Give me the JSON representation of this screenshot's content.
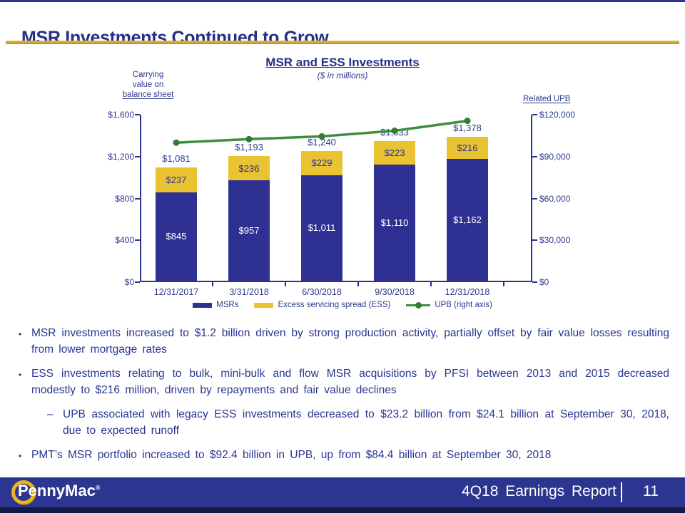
{
  "slide": {
    "title": "MSR Investments Continued to Grow"
  },
  "colors": {
    "navy_bar": "#2E3192",
    "gold_bar": "#E9C331",
    "green_line": "#3E8E41",
    "green_marker": "#2F7D33",
    "gold_rule": "#C2A02C",
    "text_navy": "#283593",
    "footer_bg": "#2C3691"
  },
  "chart": {
    "title": "MSR and ESS Investments",
    "subtitle": "($ in millions)",
    "left_axis_label": {
      "line1": "Carrying",
      "line2": "value on",
      "line3": "balance sheet"
    },
    "right_axis_label": "Related UPB",
    "left_ticks": [
      "$1,600",
      "$1,200",
      "$800",
      "$400",
      "$0"
    ],
    "right_ticks": [
      "$120,000",
      "$90,000",
      "$60,000",
      "$30,000",
      "$0"
    ],
    "legend": [
      {
        "label": "MSRs",
        "swatch": "rect",
        "color": "#2E3192"
      },
      {
        "label": "Excess servicing spread (ESS)",
        "swatch": "rect",
        "color": "#E9C331"
      },
      {
        "label": "UPB (right axis)",
        "swatch": "line",
        "color": "#3E8E41",
        "marker_color": "#2F7D33"
      }
    ]
  },
  "chart_data": {
    "type": "bar",
    "subtype": "stacked-bars-with-right-axis-line",
    "title": "MSR and ESS Investments",
    "subtitle": "($ in millions)",
    "categories": [
      "12/31/2017",
      "3/31/2018",
      "6/30/2018",
      "9/30/2018",
      "12/31/2018"
    ],
    "series": [
      {
        "name": "MSRs",
        "type": "bar",
        "axis": "left",
        "values": [
          845,
          957,
          1011,
          1110,
          1162
        ],
        "labels": [
          "$845",
          "$957",
          "$1,011",
          "$1,110",
          "$1,162"
        ]
      },
      {
        "name": "Excess servicing spread (ESS)",
        "type": "bar",
        "axis": "left",
        "values": [
          237,
          236,
          229,
          223,
          216
        ],
        "labels": [
          "$237",
          "$236",
          "$229",
          "$223",
          "$216"
        ]
      },
      {
        "name": "UPB (right axis)",
        "type": "line",
        "axis": "right",
        "values": [
          100000,
          102500,
          104500,
          108500,
          115600
        ],
        "values_note": "estimated from plot; no data labels shown"
      }
    ],
    "totals": [
      1081,
      1193,
      1240,
      1333,
      1378
    ],
    "total_labels": [
      "$1,081",
      "$1,193",
      "$1,240",
      "$1,333",
      "$1,378"
    ],
    "left_axis": {
      "label": "Carrying value on balance sheet",
      "ylim": [
        0,
        1600
      ],
      "ticks": [
        0,
        400,
        800,
        1200,
        1600
      ]
    },
    "right_axis": {
      "label": "Related UPB",
      "ylim": [
        0,
        120000
      ],
      "ticks": [
        0,
        30000,
        60000,
        90000,
        120000
      ]
    },
    "grid": false,
    "legend_position": "bottom"
  },
  "bullets": [
    {
      "level": 1,
      "marker": "•",
      "text": "MSR investments increased to $1.2 billion driven by strong production activity, partially offset by fair value losses resulting from lower mortgage rates"
    },
    {
      "level": 1,
      "marker": "•",
      "text": "ESS investments relating to bulk, mini-bulk and flow MSR acquisitions by PFSI between 2013 and 2015 decreased modestly to $216 million, driven by repayments and fair value declines"
    },
    {
      "level": 2,
      "marker": "–",
      "text": "UPB associated with legacy ESS investments decreased to $23.2 billion from $24.1 billion at September 30, 2018, due to expected runoff"
    },
    {
      "level": 1,
      "marker": "•",
      "text": "PMT’s MSR portfolio increased to $92.4 billion in UPB, up from $84.4 billion at September 30, 2018"
    }
  ],
  "footer": {
    "brand": "PennyMac",
    "registered": "®",
    "report_title": "4Q18 Earnings Report",
    "page_number": "11"
  }
}
